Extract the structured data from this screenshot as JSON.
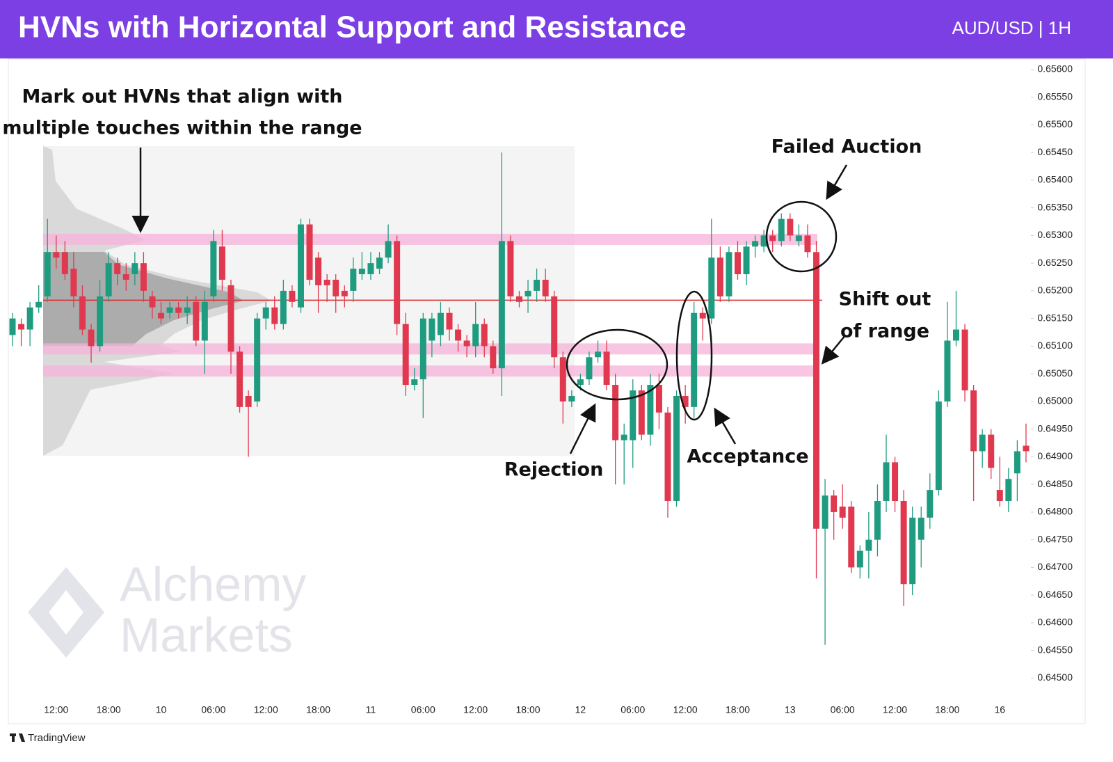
{
  "chart_data": {
    "type": "candlestick",
    "title": "HVNs with Horizontal Support and Resistance",
    "subtitle": "AUD/USD | 1H",
    "watermark": [
      "Alchemy",
      "Markets"
    ],
    "source": "TradingView",
    "up_color": "#1f9c80",
    "down_color": "#e0394f",
    "annotations": {
      "hvn_note": [
        "Mark out HVNs that align with",
        "multiple touches within the range"
      ],
      "failed_auction": "Failed Auction",
      "shift": [
        "Shift out",
        "of range"
      ],
      "rejection": "Rejection",
      "acceptance": "Acceptance"
    },
    "hvn_levels": [
      0.65293,
      0.65095,
      0.65055
    ],
    "hvn_color": "#f6b3d9",
    "range_line": 0.65183,
    "range_line_color": "#d92b2b",
    "ylim": [
      0.6442,
      0.6562
    ],
    "yticks": [
      {
        "value": 0.656,
        "label": "0.65600"
      },
      {
        "value": 0.6555,
        "label": "0.65550"
      },
      {
        "value": 0.655,
        "label": "0.65500"
      },
      {
        "value": 0.6545,
        "label": "0.65450"
      },
      {
        "value": 0.654,
        "label": "0.65400"
      },
      {
        "value": 0.6535,
        "label": "0.65350"
      },
      {
        "value": 0.653,
        "label": "0.65300"
      },
      {
        "value": 0.6525,
        "label": "0.65250"
      },
      {
        "value": 0.652,
        "label": "0.65200"
      },
      {
        "value": 0.6515,
        "label": "0.65150"
      },
      {
        "value": 0.651,
        "label": "0.65100"
      },
      {
        "value": 0.6505,
        "label": "0.65050"
      },
      {
        "value": 0.65,
        "label": "0.65000"
      },
      {
        "value": 0.6495,
        "label": "0.64950"
      },
      {
        "value": 0.649,
        "label": "0.64900"
      },
      {
        "value": 0.6485,
        "label": "0.64850"
      },
      {
        "value": 0.648,
        "label": "0.64800"
      },
      {
        "value": 0.6475,
        "label": "0.64750"
      },
      {
        "value": 0.647,
        "label": "0.64700"
      },
      {
        "value": 0.6465,
        "label": "0.64650"
      },
      {
        "value": 0.646,
        "label": "0.64600"
      },
      {
        "value": 0.6455,
        "label": "0.64550"
      },
      {
        "value": 0.645,
        "label": "0.64500"
      }
    ],
    "categories": [
      null,
      null,
      null,
      null,
      null,
      "12:00",
      null,
      null,
      null,
      null,
      null,
      "18:00",
      null,
      null,
      null,
      null,
      null,
      "10",
      null,
      null,
      null,
      null,
      null,
      "06:00",
      null,
      null,
      null,
      null,
      null,
      "12:00",
      null,
      null,
      null,
      null,
      null,
      "18:00",
      null,
      null,
      null,
      null,
      null,
      "11",
      null,
      null,
      null,
      null,
      null,
      "06:00",
      null,
      null,
      null,
      null,
      null,
      "12:00",
      null,
      null,
      null,
      null,
      null,
      "18:00",
      null,
      null,
      null,
      null,
      null,
      "12",
      null,
      null,
      null,
      null,
      null,
      "06:00",
      null,
      null,
      null,
      null,
      null,
      "12:00",
      null,
      null,
      null,
      null,
      null,
      "18:00",
      null,
      null,
      null,
      null,
      null,
      "13",
      null,
      null,
      null,
      null,
      null,
      "06:00",
      null,
      null,
      null,
      null,
      null,
      "12:00",
      null,
      null,
      null,
      null,
      null,
      "18:00",
      null,
      null,
      null,
      null,
      null,
      "16",
      null,
      null,
      null
    ],
    "open": [
      0.6512,
      0.6514,
      0.6513,
      0.6517,
      0.6519,
      0.6527,
      0.6527,
      0.6524,
      0.6519,
      0.6513,
      0.651,
      0.6519,
      0.6525,
      0.6523,
      0.6523,
      0.6525,
      0.6519,
      0.6516,
      0.6516,
      0.6517,
      0.6516,
      0.6518,
      0.6511,
      0.6519,
      0.6528,
      0.6521,
      0.6509,
      0.6501,
      0.65,
      0.6515,
      0.6517,
      0.6514,
      0.652,
      0.6517,
      0.6532,
      0.6526,
      0.6522,
      0.6522,
      0.652,
      0.652,
      0.6523,
      0.6523,
      0.6524,
      0.6526,
      0.6529,
      0.6514,
      0.6503,
      0.6504,
      0.6511,
      0.6512,
      0.6516,
      0.6513,
      0.6511,
      0.651,
      0.6514,
      0.651,
      0.6506,
      0.6529,
      0.6519,
      0.6519,
      0.652,
      0.6522,
      0.6519,
      0.6508,
      0.65,
      0.6503,
      0.6504,
      0.6508,
      0.6509,
      0.6503,
      0.6493,
      0.6493,
      0.6502,
      0.6494,
      0.6503,
      0.6498,
      0.6482,
      0.6501,
      0.6499,
      0.6516,
      0.6515,
      0.6526,
      0.6519,
      0.6527,
      0.6523,
      0.6528,
      0.6528,
      0.653,
      0.6529,
      0.6533,
      0.6529,
      0.653,
      0.6527,
      0.6477,
      0.6483,
      0.6481,
      0.6481,
      0.647,
      0.6473,
      0.6475,
      0.6482,
      0.6489,
      0.6482,
      0.6467,
      0.6475,
      0.6479,
      0.6484,
      0.65,
      0.6511,
      0.6513,
      0.6502,
      0.6491,
      0.6494,
      0.6484,
      0.6482,
      0.6487,
      0.6492
    ],
    "high": [
      0.6516,
      0.6515,
      0.6518,
      0.6521,
      0.6533,
      0.653,
      0.6529,
      0.6527,
      0.6521,
      0.6514,
      0.6522,
      0.6527,
      0.6526,
      0.6525,
      0.6527,
      0.6527,
      0.652,
      0.6518,
      0.6518,
      0.6518,
      0.6519,
      0.6519,
      0.652,
      0.6531,
      0.6531,
      0.6522,
      0.651,
      0.6502,
      0.6516,
      0.6518,
      0.6519,
      0.6522,
      0.6521,
      0.6533,
      0.6533,
      0.6527,
      0.6523,
      0.6523,
      0.6521,
      0.6526,
      0.6527,
      0.6527,
      0.6527,
      0.6532,
      0.653,
      0.6516,
      0.6506,
      0.6516,
      0.6516,
      0.6518,
      0.6517,
      0.6514,
      0.6512,
      0.6518,
      0.6515,
      0.6511,
      0.6545,
      0.653,
      0.652,
      0.6522,
      0.6524,
      0.6524,
      0.652,
      0.6509,
      0.6502,
      0.6505,
      0.6509,
      0.6511,
      0.6511,
      0.6505,
      0.6496,
      0.6504,
      0.6503,
      0.6505,
      0.6505,
      0.6499,
      0.6502,
      0.6503,
      0.6518,
      0.6517,
      0.6533,
      0.6528,
      0.6528,
      0.6529,
      0.6529,
      0.653,
      0.6531,
      0.6531,
      0.6534,
      0.6534,
      0.6532,
      0.6532,
      0.6529,
      0.6486,
      0.6484,
      0.6485,
      0.6482,
      0.6474,
      0.648,
      0.6485,
      0.6494,
      0.649,
      0.6484,
      0.6481,
      0.6481,
      0.6487,
      0.6502,
      0.6518,
      0.652,
      0.6514,
      0.6503,
      0.6495,
      0.6495,
      0.649,
      0.6488,
      0.6493,
      0.6496
    ],
    "low": [
      0.651,
      0.651,
      0.651,
      0.6516,
      0.6518,
      0.6524,
      0.6522,
      0.6517,
      0.6512,
      0.6507,
      0.6509,
      0.6518,
      0.6521,
      0.652,
      0.6521,
      0.6518,
      0.6515,
      0.6514,
      0.6515,
      0.6515,
      0.6514,
      0.651,
      0.6505,
      0.6518,
      0.652,
      0.6505,
      0.6498,
      0.649,
      0.6499,
      0.6513,
      0.6513,
      0.6513,
      0.6517,
      0.6516,
      0.6521,
      0.6516,
      0.6518,
      0.6516,
      0.6517,
      0.6518,
      0.6522,
      0.6522,
      0.6523,
      0.6525,
      0.6512,
      0.6501,
      0.6502,
      0.6497,
      0.6508,
      0.651,
      0.6511,
      0.6509,
      0.6508,
      0.6508,
      0.6508,
      0.6505,
      0.6501,
      0.6518,
      0.6517,
      0.6516,
      0.6518,
      0.6518,
      0.6506,
      0.6496,
      0.6499,
      0.6502,
      0.6503,
      0.6507,
      0.6502,
      0.6485,
      0.6485,
      0.6488,
      0.6493,
      0.6492,
      0.6495,
      0.6479,
      0.6481,
      0.6496,
      0.6497,
      0.6511,
      0.6514,
      0.6518,
      0.6518,
      0.6522,
      0.6521,
      0.6526,
      0.6527,
      0.6527,
      0.6528,
      0.6529,
      0.6528,
      0.6526,
      0.6468,
      0.6456,
      0.6475,
      0.6477,
      0.6469,
      0.6468,
      0.6468,
      0.6472,
      0.648,
      0.648,
      0.6463,
      0.6465,
      0.647,
      0.6477,
      0.6483,
      0.6499,
      0.651,
      0.65,
      0.6482,
      0.6488,
      0.6486,
      0.6481,
      0.648,
      0.6482,
      0.6489
    ],
    "close": [
      0.6515,
      0.6513,
      0.6517,
      0.6518,
      0.6527,
      0.6526,
      0.6523,
      0.6519,
      0.6513,
      0.651,
      0.6519,
      0.6525,
      0.6523,
      0.6522,
      0.6525,
      0.652,
      0.6517,
      0.6515,
      0.6517,
      0.6516,
      0.6517,
      0.6511,
      0.6518,
      0.6529,
      0.6522,
      0.6509,
      0.6499,
      0.6499,
      0.6515,
      0.6517,
      0.6514,
      0.652,
      0.6518,
      0.6532,
      0.6522,
      0.6521,
      0.6521,
      0.6519,
      0.6519,
      0.6524,
      0.6524,
      0.6525,
      0.6526,
      0.6529,
      0.6514,
      0.6503,
      0.6504,
      0.6515,
      0.6515,
      0.6516,
      0.6513,
      0.6511,
      0.651,
      0.6514,
      0.651,
      0.6506,
      0.6529,
      0.6519,
      0.6518,
      0.652,
      0.6522,
      0.6519,
      0.6508,
      0.65,
      0.6501,
      0.6504,
      0.6508,
      0.6509,
      0.6503,
      0.6493,
      0.6494,
      0.6502,
      0.6494,
      0.6503,
      0.6498,
      0.6482,
      0.6501,
      0.6499,
      0.6516,
      0.6515,
      0.6526,
      0.6519,
      0.6527,
      0.6523,
      0.6528,
      0.6529,
      0.653,
      0.6529,
      0.6533,
      0.653,
      0.653,
      0.6527,
      0.6477,
      0.6483,
      0.648,
      0.6479,
      0.647,
      0.6473,
      0.6475,
      0.6482,
      0.6489,
      0.6482,
      0.6467,
      0.6479,
      0.6479,
      0.6484,
      0.65,
      0.6511,
      0.6513,
      0.6502,
      0.6491,
      0.6494,
      0.6488,
      0.6482,
      0.6486,
      0.6491,
      0.6491
    ]
  }
}
